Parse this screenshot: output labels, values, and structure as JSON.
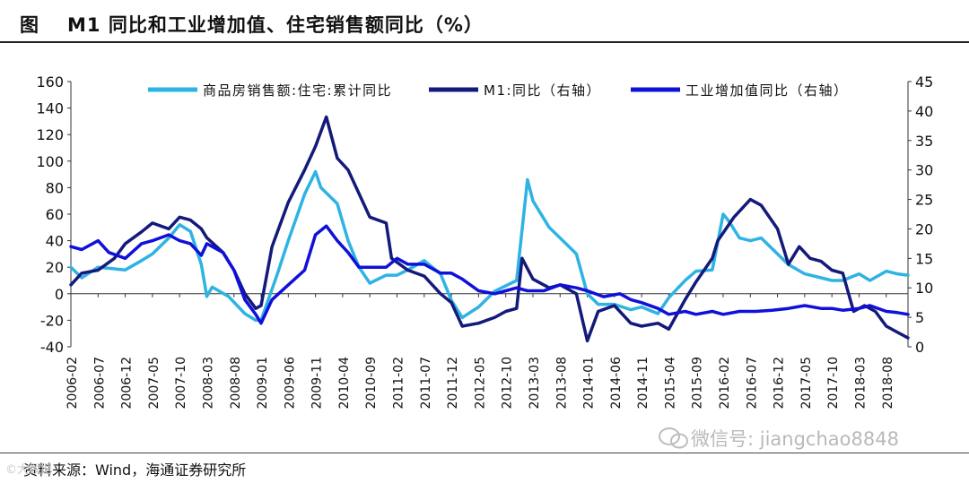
{
  "figure": {
    "label": "图",
    "title": "M1 同比和工业增加值、住宅销售额同比（%）"
  },
  "source_text": "资料来源：Wind，海通证券研究所",
  "watermark_text": "微信号: jiangchao8848",
  "corner_watermark": "©大数据",
  "chart_data": {
    "type": "line",
    "x_ticks": [
      "2006-02",
      "2006-07",
      "2006-12",
      "2007-05",
      "2007-10",
      "2008-03",
      "2008-08",
      "2009-01",
      "2009-06",
      "2009-11",
      "2010-04",
      "2010-09",
      "2011-02",
      "2011-07",
      "2011-12",
      "2012-05",
      "2012-10",
      "2013-03",
      "2013-08",
      "2014-01",
      "2014-06",
      "2014-11",
      "2015-04",
      "2015-09",
      "2016-02",
      "2016-07",
      "2016-12",
      "2017-05",
      "2017-10",
      "2018-03",
      "2018-08"
    ],
    "x_start": "2006-02",
    "x_end": "2018-12",
    "left_axis": {
      "min": -40,
      "max": 160,
      "ticks": [
        -40,
        -20,
        0,
        20,
        40,
        60,
        80,
        100,
        120,
        140,
        160
      ]
    },
    "right_axis": {
      "min": 0,
      "max": 45,
      "ticks": [
        0,
        5,
        10,
        15,
        20,
        25,
        30,
        35,
        40,
        45
      ]
    },
    "grid": false,
    "legend_position": "top",
    "series": [
      {
        "name": "商品房销售额:住宅:累计同比",
        "axis": "left",
        "color": "#2eb3e3",
        "points": [
          [
            "2006-02",
            20
          ],
          [
            "2006-04",
            12
          ],
          [
            "2006-07",
            20
          ],
          [
            "2006-12",
            18
          ],
          [
            "2007-03",
            25
          ],
          [
            "2007-05",
            30
          ],
          [
            "2007-08",
            42
          ],
          [
            "2007-10",
            52
          ],
          [
            "2007-12",
            47
          ],
          [
            "2008-02",
            22
          ],
          [
            "2008-03",
            -2
          ],
          [
            "2008-04",
            5
          ],
          [
            "2008-07",
            -2
          ],
          [
            "2008-10",
            -15
          ],
          [
            "2008-12",
            -20
          ],
          [
            "2009-01",
            -20
          ],
          [
            "2009-04",
            15
          ],
          [
            "2009-06",
            40
          ],
          [
            "2009-09",
            75
          ],
          [
            "2009-11",
            92
          ],
          [
            "2009-12",
            80
          ],
          [
            "2010-03",
            68
          ],
          [
            "2010-05",
            40
          ],
          [
            "2010-07",
            20
          ],
          [
            "2010-09",
            8
          ],
          [
            "2010-12",
            14
          ],
          [
            "2011-02",
            14
          ],
          [
            "2011-04",
            18
          ],
          [
            "2011-07",
            25
          ],
          [
            "2011-10",
            15
          ],
          [
            "2011-12",
            -5
          ],
          [
            "2012-02",
            -18
          ],
          [
            "2012-05",
            -10
          ],
          [
            "2012-08",
            2
          ],
          [
            "2012-10",
            6
          ],
          [
            "2012-12",
            10
          ],
          [
            "2013-02",
            86
          ],
          [
            "2013-03",
            70
          ],
          [
            "2013-06",
            50
          ],
          [
            "2013-08",
            42
          ],
          [
            "2013-11",
            30
          ],
          [
            "2014-01",
            0
          ],
          [
            "2014-03",
            -8
          ],
          [
            "2014-06",
            -8
          ],
          [
            "2014-09",
            -12
          ],
          [
            "2014-11",
            -10
          ],
          [
            "2015-02",
            -15
          ],
          [
            "2015-04",
            -3
          ],
          [
            "2015-07",
            10
          ],
          [
            "2015-09",
            17
          ],
          [
            "2015-12",
            18
          ],
          [
            "2016-02",
            60
          ],
          [
            "2016-03",
            55
          ],
          [
            "2016-05",
            42
          ],
          [
            "2016-07",
            40
          ],
          [
            "2016-09",
            42
          ],
          [
            "2016-12",
            30
          ],
          [
            "2017-02",
            22
          ],
          [
            "2017-05",
            15
          ],
          [
            "2017-08",
            12
          ],
          [
            "2017-10",
            10
          ],
          [
            "2017-12",
            10
          ],
          [
            "2018-03",
            15
          ],
          [
            "2018-05",
            10
          ],
          [
            "2018-08",
            17
          ],
          [
            "2018-10",
            15
          ],
          [
            "2018-12",
            14
          ]
        ]
      },
      {
        "name": "M1:同比（右轴）",
        "axis": "right",
        "color": "#141a7a",
        "points": [
          [
            "2006-02",
            10.5
          ],
          [
            "2006-04",
            12.5
          ],
          [
            "2006-07",
            13
          ],
          [
            "2006-10",
            15
          ],
          [
            "2006-12",
            17.5
          ],
          [
            "2007-03",
            19.5
          ],
          [
            "2007-05",
            21
          ],
          [
            "2007-08",
            20
          ],
          [
            "2007-10",
            22
          ],
          [
            "2007-12",
            21.5
          ],
          [
            "2008-02",
            20
          ],
          [
            "2008-03",
            18.5
          ],
          [
            "2008-06",
            16
          ],
          [
            "2008-08",
            13
          ],
          [
            "2008-10",
            9
          ],
          [
            "2008-12",
            6.5
          ],
          [
            "2009-01",
            7
          ],
          [
            "2009-03",
            17
          ],
          [
            "2009-06",
            24.5
          ],
          [
            "2009-09",
            30
          ],
          [
            "2009-11",
            34
          ],
          [
            "2010-01",
            39
          ],
          [
            "2010-03",
            32
          ],
          [
            "2010-05",
            30
          ],
          [
            "2010-07",
            26
          ],
          [
            "2010-09",
            22
          ],
          [
            "2010-12",
            21
          ],
          [
            "2011-01",
            15
          ],
          [
            "2011-04",
            13
          ],
          [
            "2011-07",
            12
          ],
          [
            "2011-10",
            9
          ],
          [
            "2011-12",
            7.5
          ],
          [
            "2012-02",
            3.5
          ],
          [
            "2012-05",
            4
          ],
          [
            "2012-08",
            5
          ],
          [
            "2012-10",
            6
          ],
          [
            "2012-12",
            6.5
          ],
          [
            "2013-01",
            15
          ],
          [
            "2013-03",
            11.5
          ],
          [
            "2013-06",
            10
          ],
          [
            "2013-08",
            10.5
          ],
          [
            "2013-11",
            9
          ],
          [
            "2014-01",
            1
          ],
          [
            "2014-03",
            6
          ],
          [
            "2014-06",
            7
          ],
          [
            "2014-09",
            4
          ],
          [
            "2014-11",
            3.5
          ],
          [
            "2015-02",
            4
          ],
          [
            "2015-04",
            3
          ],
          [
            "2015-07",
            8
          ],
          [
            "2015-09",
            11
          ],
          [
            "2015-12",
            15
          ],
          [
            "2016-01",
            18
          ],
          [
            "2016-04",
            22
          ],
          [
            "2016-07",
            25
          ],
          [
            "2016-09",
            24
          ],
          [
            "2016-12",
            20
          ],
          [
            "2017-02",
            14
          ],
          [
            "2017-04",
            17
          ],
          [
            "2017-06",
            15
          ],
          [
            "2017-08",
            14.5
          ],
          [
            "2017-10",
            13
          ],
          [
            "2017-12",
            12.5
          ],
          [
            "2018-02",
            6
          ],
          [
            "2018-04",
            7
          ],
          [
            "2018-06",
            6
          ],
          [
            "2018-08",
            3.5
          ],
          [
            "2018-10",
            2.5
          ],
          [
            "2018-12",
            1.5
          ]
        ]
      },
      {
        "name": "工业增加值同比（右轴）",
        "axis": "right",
        "color": "#1010d8",
        "points": [
          [
            "2006-02",
            17
          ],
          [
            "2006-04",
            16.5
          ],
          [
            "2006-07",
            18
          ],
          [
            "2006-09",
            16
          ],
          [
            "2006-12",
            15
          ],
          [
            "2007-03",
            17.5
          ],
          [
            "2007-05",
            18
          ],
          [
            "2007-08",
            19
          ],
          [
            "2007-10",
            18
          ],
          [
            "2007-12",
            17.5
          ],
          [
            "2008-02",
            15.5
          ],
          [
            "2008-03",
            17.5
          ],
          [
            "2008-06",
            16
          ],
          [
            "2008-08",
            13
          ],
          [
            "2008-10",
            8
          ],
          [
            "2008-12",
            5.5
          ],
          [
            "2009-01",
            4
          ],
          [
            "2009-03",
            8
          ],
          [
            "2009-06",
            10.5
          ],
          [
            "2009-09",
            13
          ],
          [
            "2009-11",
            19
          ],
          [
            "2010-01",
            20.5
          ],
          [
            "2010-03",
            18
          ],
          [
            "2010-05",
            16
          ],
          [
            "2010-07",
            13.5
          ],
          [
            "2010-09",
            13.5
          ],
          [
            "2010-12",
            13.5
          ],
          [
            "2011-02",
            15
          ],
          [
            "2011-04",
            14
          ],
          [
            "2011-07",
            14
          ],
          [
            "2011-10",
            12.5
          ],
          [
            "2011-12",
            12.5
          ],
          [
            "2012-02",
            11.5
          ],
          [
            "2012-05",
            9.5
          ],
          [
            "2012-08",
            9
          ],
          [
            "2012-10",
            9.5
          ],
          [
            "2012-12",
            10
          ],
          [
            "2013-02",
            9.5
          ],
          [
            "2013-05",
            9.5
          ],
          [
            "2013-08",
            10.5
          ],
          [
            "2013-11",
            10
          ],
          [
            "2014-01",
            9.5
          ],
          [
            "2014-04",
            8.5
          ],
          [
            "2014-07",
            9
          ],
          [
            "2014-09",
            8
          ],
          [
            "2014-11",
            7.5
          ],
          [
            "2015-02",
            6.5
          ],
          [
            "2015-04",
            5.5
          ],
          [
            "2015-07",
            6
          ],
          [
            "2015-09",
            5.5
          ],
          [
            "2015-12",
            6
          ],
          [
            "2016-02",
            5.5
          ],
          [
            "2016-05",
            6
          ],
          [
            "2016-08",
            6
          ],
          [
            "2016-11",
            6.2
          ],
          [
            "2017-02",
            6.5
          ],
          [
            "2017-05",
            7
          ],
          [
            "2017-08",
            6.5
          ],
          [
            "2017-10",
            6.5
          ],
          [
            "2017-12",
            6.2
          ],
          [
            "2018-03",
            6.5
          ],
          [
            "2018-05",
            7
          ],
          [
            "2018-08",
            6
          ],
          [
            "2018-10",
            5.8
          ],
          [
            "2018-12",
            5.5
          ]
        ]
      }
    ]
  }
}
